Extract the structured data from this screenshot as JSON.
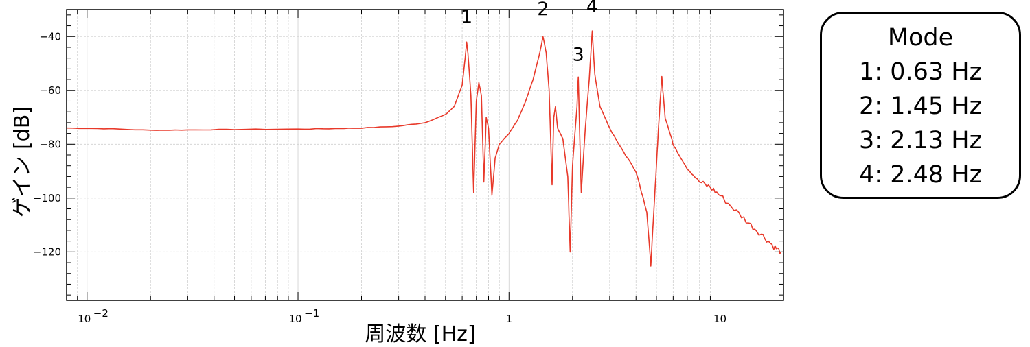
{
  "chart_data": {
    "type": "line",
    "title": "",
    "xlabel": "周波数 [Hz]",
    "ylabel": "ゲイン [dB]",
    "x_scale": "log",
    "xlim": [
      0.008,
      20
    ],
    "ylim": [
      -138,
      -30
    ],
    "grid": true,
    "x_tick_labels": [
      {
        "value": 0.01,
        "base": "10",
        "exp": "−2"
      },
      {
        "value": 0.1,
        "base": "10",
        "exp": "−1"
      },
      {
        "value": 1,
        "base": "1",
        "exp": ""
      },
      {
        "value": 10,
        "base": "10",
        "exp": ""
      }
    ],
    "y_ticks": [
      -40,
      -60,
      -80,
      -100,
      -120
    ],
    "y_tick_labels": [
      "−40",
      "−60",
      "−80",
      "−100",
      "−120"
    ],
    "series": [
      {
        "color": "#e8392a",
        "points": [
          [
            0.008,
            -74
          ],
          [
            0.012,
            -74.2
          ],
          [
            0.02,
            -74.8
          ],
          [
            0.03,
            -74.7
          ],
          [
            0.05,
            -74.5
          ],
          [
            0.1,
            -74.4
          ],
          [
            0.15,
            -74.2
          ],
          [
            0.2,
            -74.0
          ],
          [
            0.3,
            -73.3
          ],
          [
            0.4,
            -72.0
          ],
          [
            0.5,
            -69.0
          ],
          [
            0.55,
            -66.0
          ],
          [
            0.6,
            -58.0
          ],
          [
            0.62,
            -48.0
          ],
          [
            0.63,
            -42.0
          ],
          [
            0.64,
            -47.0
          ],
          [
            0.66,
            -62.0
          ],
          [
            0.68,
            -98.0
          ],
          [
            0.7,
            -64.0
          ],
          [
            0.72,
            -57.0
          ],
          [
            0.74,
            -62.0
          ],
          [
            0.76,
            -94.0
          ],
          [
            0.78,
            -70.0
          ],
          [
            0.8,
            -74.0
          ],
          [
            0.83,
            -99.0
          ],
          [
            0.86,
            -85.0
          ],
          [
            0.9,
            -80.0
          ],
          [
            1.0,
            -76.0
          ],
          [
            1.1,
            -71.0
          ],
          [
            1.2,
            -64.0
          ],
          [
            1.3,
            -56.0
          ],
          [
            1.4,
            -46.0
          ],
          [
            1.45,
            -40.0
          ],
          [
            1.5,
            -46.0
          ],
          [
            1.55,
            -60.0
          ],
          [
            1.6,
            -95.0
          ],
          [
            1.63,
            -70.0
          ],
          [
            1.66,
            -66.0
          ],
          [
            1.7,
            -74.0
          ],
          [
            1.8,
            -78.0
          ],
          [
            1.9,
            -92.0
          ],
          [
            1.95,
            -120.0
          ],
          [
            2.0,
            -88.0
          ],
          [
            2.1,
            -66.0
          ],
          [
            2.13,
            -55.0
          ],
          [
            2.16,
            -74.0
          ],
          [
            2.2,
            -98.0
          ],
          [
            2.3,
            -74.0
          ],
          [
            2.4,
            -56.0
          ],
          [
            2.48,
            -38.0
          ],
          [
            2.55,
            -54.0
          ],
          [
            2.7,
            -66.0
          ],
          [
            3.0,
            -74.0
          ],
          [
            3.5,
            -83.0
          ],
          [
            4.0,
            -90.0
          ],
          [
            4.5,
            -105.0
          ],
          [
            4.7,
            -125.0
          ],
          [
            4.9,
            -100.0
          ],
          [
            5.1,
            -75.0
          ],
          [
            5.3,
            -55.0
          ],
          [
            5.5,
            -70.0
          ],
          [
            6.0,
            -80.0
          ],
          [
            7.0,
            -89.0
          ],
          [
            8.0,
            -94.0
          ],
          [
            9.0,
            -96.0
          ],
          [
            10.0,
            -99.0
          ],
          [
            12.0,
            -105.0
          ],
          [
            14.0,
            -110.0
          ],
          [
            16.0,
            -114.0
          ],
          [
            18.0,
            -118.0
          ],
          [
            19.5,
            -120.0
          ]
        ]
      }
    ],
    "annotations": [
      {
        "text": "1",
        "x": 0.63,
        "y": -35
      },
      {
        "text": "2",
        "x": 1.45,
        "y": -32
      },
      {
        "text": "3",
        "x": 2.13,
        "y": -49
      },
      {
        "text": "4",
        "x": 2.48,
        "y": -31
      }
    ]
  },
  "legend": {
    "title": "Mode",
    "entries": [
      "1: 0.63 Hz",
      "2: 1.45 Hz",
      "3: 2.13 Hz",
      "4: 2.48 Hz"
    ]
  }
}
